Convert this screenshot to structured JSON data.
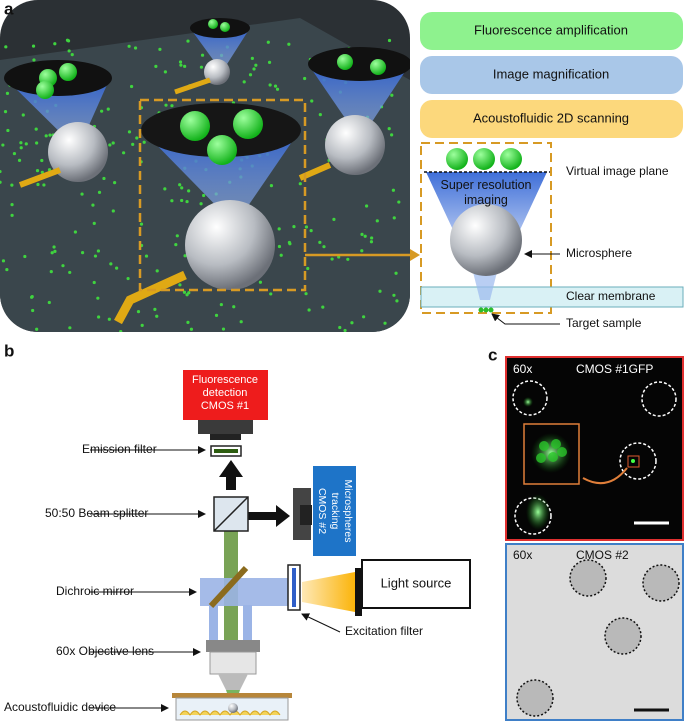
{
  "panel_a": {
    "label": "a",
    "boxes": [
      "Fluorescence amplification",
      "Image magnification",
      "Acoustofluidic 2D scanning"
    ],
    "virtual_image_plane": "Virtual image plane",
    "cone_text": [
      "Super resolution",
      "imaging"
    ],
    "microsphere": "Microsphere",
    "clear_membrane": "Clear membrane",
    "target_sample": "Target sample"
  },
  "panel_b": {
    "label": "b",
    "detection_camera": [
      "Fluorescence",
      "detection",
      "CMOS #1"
    ],
    "tracking_camera": [
      "Microspheres",
      "tracking",
      "CMOS #2"
    ],
    "emission_filter": "Emission filter",
    "beam_splitter": "50:50 Beam splitter",
    "dichroic_mirror": "Dichroic mirror",
    "light_source": "Light source",
    "excitation_filter": "Excitation filter",
    "objective_lens": "60x Objective lens",
    "device": "Acoustofluidic device"
  },
  "panel_c": {
    "label": "c",
    "top": {
      "magnification": "60x",
      "camera": "CMOS #1GFP"
    },
    "bottom": {
      "magnification": "60x",
      "camera": "CMOS #2"
    }
  }
}
